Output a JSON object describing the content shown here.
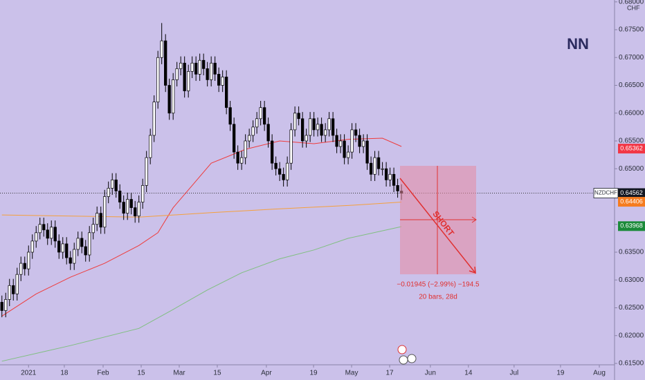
{
  "chart_data": {
    "type": "candlestick",
    "currency": "CHF",
    "watermark": "NN",
    "up_color": "#ffffff",
    "down_color": "#000000",
    "xlim": [
      -0.5,
      161
    ],
    "ylim": [
      0.61475,
      0.68034
    ],
    "xticks": [
      {
        "value": 7,
        "label": "2021"
      },
      {
        "value": 16.4,
        "label": "18"
      },
      {
        "value": 26.6,
        "label": "Feb"
      },
      {
        "value": 36.6,
        "label": "15"
      },
      {
        "value": 46.6,
        "label": "Mar"
      },
      {
        "value": 56.6,
        "label": "15"
      },
      {
        "value": 69.5,
        "label": "Apr"
      },
      {
        "value": 81.9,
        "label": "19"
      },
      {
        "value": 91.9,
        "label": "May"
      },
      {
        "value": 101.9,
        "label": "17"
      },
      {
        "value": 112.6,
        "label": "Jun"
      },
      {
        "value": 122.6,
        "label": "14"
      },
      {
        "value": 134.6,
        "label": "Jul"
      },
      {
        "value": 146.8,
        "label": "19"
      },
      {
        "value": 157,
        "label": "Aug"
      }
    ],
    "yticks": [
      {
        "value": 0.615,
        "label": "0.61500"
      },
      {
        "value": 0.62,
        "label": "0.62000"
      },
      {
        "value": 0.625,
        "label": "0.62500"
      },
      {
        "value": 0.63,
        "label": "0.63000"
      },
      {
        "value": 0.635,
        "label": "0.63500"
      },
      {
        "value": 0.64,
        "label": "0.64000"
      },
      {
        "value": 0.645,
        "label": "0.64500"
      },
      {
        "value": 0.65,
        "label": "0.65000"
      },
      {
        "value": 0.655,
        "label": "0.65500"
      },
      {
        "value": 0.66,
        "label": "0.66000"
      },
      {
        "value": 0.665,
        "label": "0.66500"
      },
      {
        "value": 0.67,
        "label": "0.67000"
      },
      {
        "value": 0.675,
        "label": "0.67500"
      },
      {
        "value": 0.68,
        "label": "0.68000"
      }
    ],
    "candles": [
      [
        0.626,
        0.6272,
        0.6233,
        0.6245
      ],
      [
        0.6245,
        0.6277,
        0.6233,
        0.6265
      ],
      [
        0.6265,
        0.6302,
        0.6253,
        0.629
      ],
      [
        0.629,
        0.6302,
        0.6263,
        0.6275
      ],
      [
        0.6275,
        0.6322,
        0.6263,
        0.631
      ],
      [
        0.631,
        0.6342,
        0.6298,
        0.633
      ],
      [
        0.633,
        0.6342,
        0.6308,
        0.632
      ],
      [
        0.632,
        0.6362,
        0.6308,
        0.635
      ],
      [
        0.635,
        0.6382,
        0.6338,
        0.637
      ],
      [
        0.637,
        0.6397,
        0.6358,
        0.6385
      ],
      [
        0.6385,
        0.6412,
        0.6373,
        0.64
      ],
      [
        0.64,
        0.6412,
        0.6378,
        0.639
      ],
      [
        0.639,
        0.6402,
        0.6363,
        0.6375
      ],
      [
        0.6375,
        0.6407,
        0.6363,
        0.6395
      ],
      [
        0.6395,
        0.6407,
        0.6358,
        0.637
      ],
      [
        0.637,
        0.6382,
        0.6338,
        0.635
      ],
      [
        0.635,
        0.6377,
        0.6338,
        0.6365
      ],
      [
        0.6365,
        0.6377,
        0.6328,
        0.634
      ],
      [
        0.634,
        0.6352,
        0.6318,
        0.633
      ],
      [
        0.633,
        0.6367,
        0.6318,
        0.6355
      ],
      [
        0.6355,
        0.6387,
        0.6343,
        0.6375
      ],
      [
        0.6375,
        0.6387,
        0.6348,
        0.636
      ],
      [
        0.636,
        0.6372,
        0.6333,
        0.6345
      ],
      [
        0.6345,
        0.6397,
        0.6333,
        0.6385
      ],
      [
        0.6385,
        0.6412,
        0.6373,
        0.64
      ],
      [
        0.64,
        0.6432,
        0.6388,
        0.642
      ],
      [
        0.642,
        0.6432,
        0.6383,
        0.6395
      ],
      [
        0.6395,
        0.6462,
        0.6383,
        0.645
      ],
      [
        0.645,
        0.6477,
        0.6438,
        0.6465
      ],
      [
        0.6465,
        0.6492,
        0.6453,
        0.648
      ],
      [
        0.648,
        0.6492,
        0.6448,
        0.646
      ],
      [
        0.646,
        0.6472,
        0.6428,
        0.644
      ],
      [
        0.644,
        0.6452,
        0.6408,
        0.642
      ],
      [
        0.642,
        0.6457,
        0.6408,
        0.6445
      ],
      [
        0.6445,
        0.6457,
        0.6418,
        0.643
      ],
      [
        0.643,
        0.6442,
        0.6403,
        0.6415
      ],
      [
        0.6415,
        0.6452,
        0.6403,
        0.644
      ],
      [
        0.644,
        0.6482,
        0.6428,
        0.647
      ],
      [
        0.647,
        0.6532,
        0.6458,
        0.652
      ],
      [
        0.652,
        0.6572,
        0.6508,
        0.656
      ],
      [
        0.656,
        0.6632,
        0.6548,
        0.662
      ],
      [
        0.662,
        0.6712,
        0.6608,
        0.67
      ],
      [
        0.67,
        0.6762,
        0.6688,
        0.673
      ],
      [
        0.673,
        0.6742,
        0.6638,
        0.665
      ],
      [
        0.665,
        0.6662,
        0.6588,
        0.66
      ],
      [
        0.66,
        0.6672,
        0.6588,
        0.666
      ],
      [
        0.666,
        0.6692,
        0.6648,
        0.668
      ],
      [
        0.668,
        0.6702,
        0.6668,
        0.669
      ],
      [
        0.669,
        0.6702,
        0.6628,
        0.664
      ],
      [
        0.664,
        0.6687,
        0.6628,
        0.6675
      ],
      [
        0.6675,
        0.6702,
        0.6663,
        0.669
      ],
      [
        0.669,
        0.6702,
        0.6658,
        0.667
      ],
      [
        0.667,
        0.6707,
        0.6658,
        0.6695
      ],
      [
        0.6695,
        0.6707,
        0.6668,
        0.668
      ],
      [
        0.668,
        0.6692,
        0.6648,
        0.666
      ],
      [
        0.666,
        0.6702,
        0.6648,
        0.669
      ],
      [
        0.669,
        0.6702,
        0.6658,
        0.667
      ],
      [
        0.667,
        0.6682,
        0.6638,
        0.665
      ],
      [
        0.665,
        0.6677,
        0.6638,
        0.6665
      ],
      [
        0.6665,
        0.6677,
        0.6598,
        0.661
      ],
      [
        0.661,
        0.6622,
        0.6568,
        0.658
      ],
      [
        0.658,
        0.6592,
        0.6518,
        0.653
      ],
      [
        0.653,
        0.6542,
        0.6498,
        0.651
      ],
      [
        0.651,
        0.6532,
        0.6498,
        0.652
      ],
      [
        0.652,
        0.6562,
        0.6508,
        0.655
      ],
      [
        0.655,
        0.6572,
        0.6538,
        0.656
      ],
      [
        0.656,
        0.6587,
        0.6548,
        0.6575
      ],
      [
        0.6575,
        0.6602,
        0.6563,
        0.659
      ],
      [
        0.659,
        0.6622,
        0.6578,
        0.661
      ],
      [
        0.661,
        0.6622,
        0.6568,
        0.658
      ],
      [
        0.658,
        0.6592,
        0.6538,
        0.655
      ],
      [
        0.655,
        0.6562,
        0.6498,
        0.651
      ],
      [
        0.651,
        0.6522,
        0.6488,
        0.65
      ],
      [
        0.65,
        0.6512,
        0.6478,
        0.649
      ],
      [
        0.649,
        0.6502,
        0.6468,
        0.648
      ],
      [
        0.648,
        0.6522,
        0.6468,
        0.651
      ],
      [
        0.651,
        0.6582,
        0.6498,
        0.657
      ],
      [
        0.657,
        0.6612,
        0.6558,
        0.66
      ],
      [
        0.66,
        0.6612,
        0.6578,
        0.659
      ],
      [
        0.659,
        0.6602,
        0.6538,
        0.655
      ],
      [
        0.655,
        0.6572,
        0.6538,
        0.656
      ],
      [
        0.656,
        0.6602,
        0.6548,
        0.659
      ],
      [
        0.659,
        0.6602,
        0.6558,
        0.657
      ],
      [
        0.657,
        0.6592,
        0.6558,
        0.658
      ],
      [
        0.658,
        0.6592,
        0.6548,
        0.656
      ],
      [
        0.656,
        0.6582,
        0.6548,
        0.657
      ],
      [
        0.657,
        0.6602,
        0.6558,
        0.659
      ],
      [
        0.659,
        0.6602,
        0.6548,
        0.656
      ],
      [
        0.656,
        0.6572,
        0.6528,
        0.654
      ],
      [
        0.654,
        0.6562,
        0.6528,
        0.655
      ],
      [
        0.655,
        0.6562,
        0.6508,
        0.652
      ],
      [
        0.652,
        0.6542,
        0.6508,
        0.653
      ],
      [
        0.653,
        0.6582,
        0.6518,
        0.657
      ],
      [
        0.657,
        0.6582,
        0.6548,
        0.656
      ],
      [
        0.656,
        0.6572,
        0.6528,
        0.654
      ],
      [
        0.654,
        0.6562,
        0.6528,
        0.655
      ],
      [
        0.655,
        0.6562,
        0.6498,
        0.651
      ],
      [
        0.651,
        0.6522,
        0.6478,
        0.649
      ],
      [
        0.649,
        0.6532,
        0.6478,
        0.652
      ],
      [
        0.652,
        0.6532,
        0.6488,
        0.65
      ],
      [
        0.65,
        0.6512,
        0.6488,
        0.65
      ],
      [
        0.65,
        0.6512,
        0.6468,
        0.648
      ],
      [
        0.648,
        0.6502,
        0.6468,
        0.649
      ],
      [
        0.649,
        0.6502,
        0.6458,
        0.647
      ],
      [
        0.647,
        0.6482,
        0.6448,
        0.646
      ],
      [
        0.646,
        0.6472,
        0.6444,
        0.6456
      ]
    ],
    "lines": [
      {
        "color": "#ef3b3b",
        "x": [
          0,
          9,
          18,
          27,
          36,
          41,
          45,
          50,
          55,
          64,
          73,
          82,
          91,
          100,
          105
        ],
        "values": [
          0.6235,
          0.6275,
          0.6305,
          0.633,
          0.6362,
          0.6385,
          0.643,
          0.647,
          0.651,
          0.6535,
          0.655,
          0.6545,
          0.6553,
          0.6555,
          0.654
        ]
      },
      {
        "color": "#f5a03c",
        "x": [
          0,
          36,
          55,
          73,
          91,
          105
        ],
        "values": [
          0.6417,
          0.6413,
          0.6421,
          0.6428,
          0.6434,
          0.644
        ]
      },
      {
        "color": "#7fbf7f",
        "x": [
          0,
          18,
          36,
          45,
          54,
          63,
          73,
          82,
          91,
          105
        ],
        "values": [
          0.6154,
          0.6182,
          0.6213,
          0.6247,
          0.6282,
          0.6313,
          0.6338,
          0.6354,
          0.6375,
          0.6396
        ]
      }
    ],
    "price_labels": [
      {
        "name": "NZDCHF",
        "value": 0.64562,
        "color": "#131722"
      },
      {
        "value": 0.65362,
        "color": "#f23645"
      },
      {
        "value": 0.64406,
        "color": "#f57c20"
      },
      {
        "value": 0.63968,
        "color": "#1b8a3a"
      }
    ],
    "annotations": {
      "direction": "SHORT",
      "change": "−0.01945 (−2.99%) −194.5",
      "duration": "20 bars, 28d"
    }
  }
}
